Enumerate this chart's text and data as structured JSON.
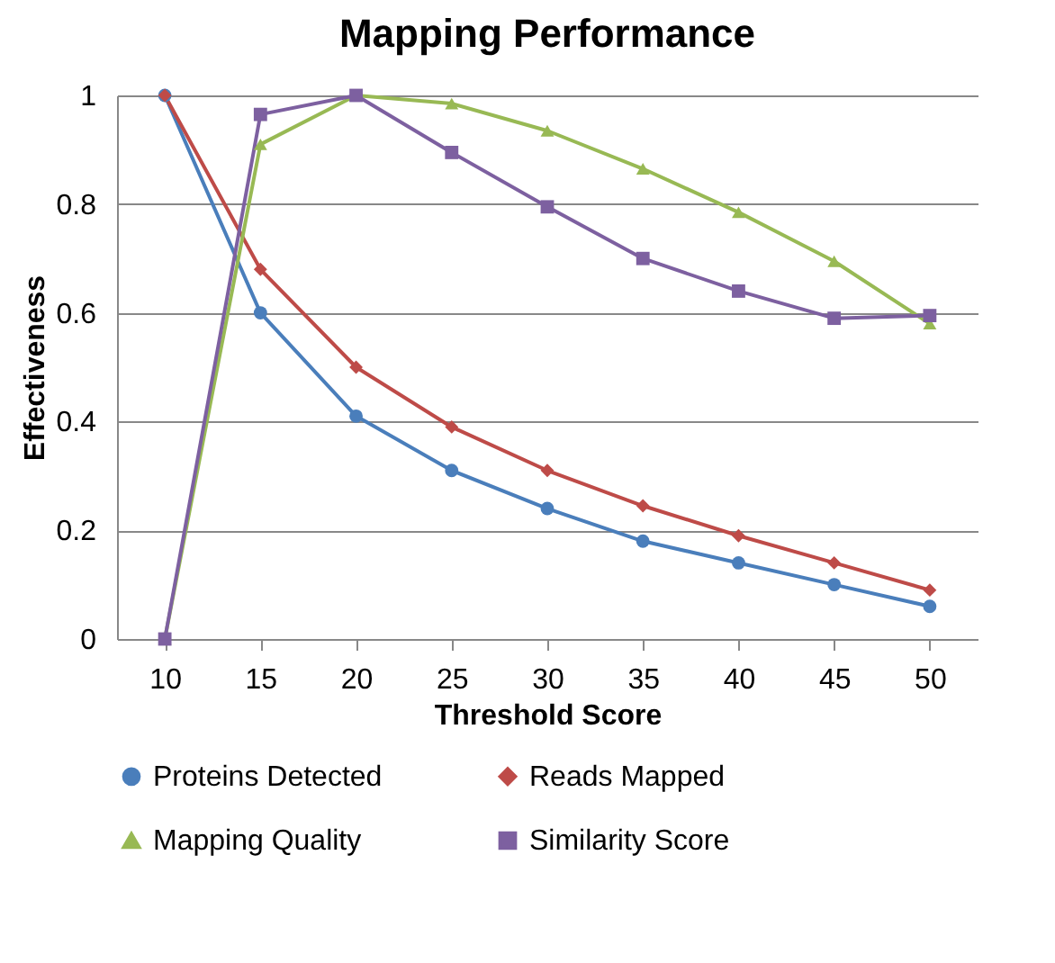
{
  "chart_data": {
    "type": "line",
    "title": "Mapping Performance",
    "xlabel": "Threshold Score",
    "ylabel": "Effectiveness",
    "categories": [
      "10",
      "15",
      "20",
      "25",
      "30",
      "35",
      "40",
      "45",
      "50"
    ],
    "series": [
      {
        "name": "Proteins Detected",
        "color": "#4a7ebb",
        "marker": "circle",
        "values": [
          1,
          0.6,
          0.41,
          0.31,
          0.24,
          0.18,
          0.14,
          0.1,
          0.06
        ]
      },
      {
        "name": "Reads Mapped",
        "color": "#be4b48",
        "marker": "diamond",
        "values": [
          1,
          0.68,
          0.5,
          0.39,
          0.31,
          0.245,
          0.19,
          0.14,
          0.09
        ]
      },
      {
        "name": "Mapping Quality",
        "color": "#98b954",
        "marker": "triangle",
        "values": [
          0,
          0.91,
          1,
          0.985,
          0.935,
          0.865,
          0.785,
          0.695,
          0.58
        ]
      },
      {
        "name": "Similarity Score",
        "color": "#7d60a0",
        "marker": "square",
        "values": [
          0,
          0.965,
          1,
          0.895,
          0.795,
          0.7,
          0.64,
          0.59,
          0.595
        ]
      }
    ],
    "ylim": [
      0,
      1
    ],
    "yticks": [
      0,
      0.2,
      0.4,
      0.6,
      0.8,
      1
    ],
    "grid": "y",
    "legend": "bottom",
    "line_style": "solid"
  }
}
